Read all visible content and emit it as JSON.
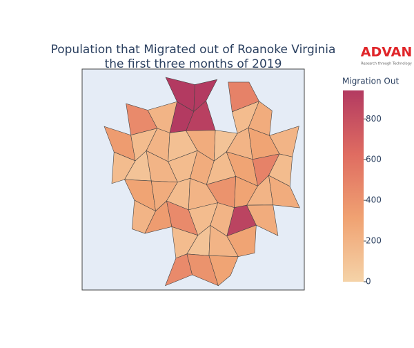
{
  "chart_data": {
    "type": "choropleth",
    "title": "Population that Migrated out of Roanoke Virginia",
    "subtitle": "the first three months of 2019",
    "logo": "ADVAN",
    "logo_tagline": "Research through Technology",
    "colorbar_title": "Migration Out",
    "colorscale": [
      "#f5d3a8",
      "#f0a272",
      "#df6c61",
      "#b33a61"
    ],
    "zlim": [
      0,
      940
    ],
    "zticks": [
      0,
      200,
      400,
      600,
      800
    ],
    "values": [
      950,
      950,
      500,
      450,
      200,
      950,
      900,
      150,
      250,
      350,
      150,
      200,
      120,
      250,
      100,
      200,
      300,
      200,
      150,
      100,
      200,
      150,
      250,
      150,
      300,
      500,
      150,
      300,
      250,
      150,
      200,
      400,
      300,
      200,
      250,
      200,
      350,
      450,
      150,
      200,
      880,
      250,
      150,
      100,
      200,
      300,
      450,
      400,
      300
    ]
  }
}
